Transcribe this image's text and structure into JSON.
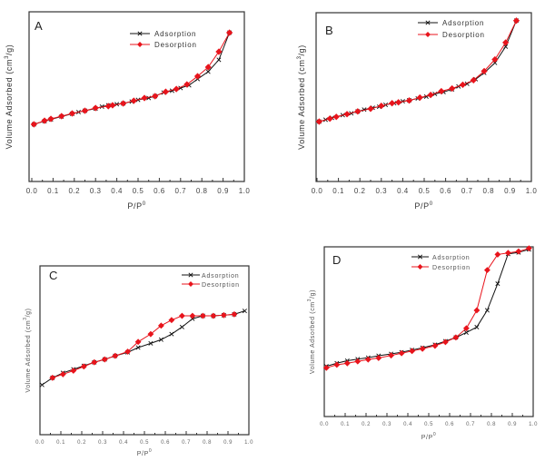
{
  "figure": {
    "description": "Four-panel N2 adsorption-desorption isotherm figure"
  },
  "chart_data": [
    {
      "type": "line",
      "panel": "A",
      "title": "",
      "xlabel": "P/P0",
      "xlabel_base": "P/P",
      "xlabel_sup": "0",
      "ylabel": "Volume Adsorbed (cm3/g)",
      "ylabel_pre": "Volume Adsorbed (cm",
      "ylabel_sup": "3",
      "ylabel_post": "/g)",
      "xlim": [
        0.0,
        1.0
      ],
      "ylim": [
        0,
        100
      ],
      "y_units_note": "relative (no y tick labels shown)",
      "xticks": [
        "0.0",
        "0.1",
        "0.2",
        "0.3",
        "0.4",
        "0.5",
        "0.6",
        "0.7",
        "0.8",
        "0.9",
        "1.0"
      ],
      "grid": false,
      "legend_position": "top-right",
      "series": [
        {
          "name": "Adsorption",
          "color": "#111111",
          "marker": "x",
          "x": [
            0.01,
            0.06,
            0.09,
            0.14,
            0.19,
            0.22,
            0.25,
            0.3,
            0.33,
            0.36,
            0.4,
            0.43,
            0.47,
            0.5,
            0.55,
            0.58,
            0.62,
            0.66,
            0.7,
            0.74,
            0.78,
            0.83,
            0.88,
            0.93
          ],
          "y": [
            33.7,
            35.6,
            36.6,
            38.3,
            39.9,
            40.9,
            41.7,
            43.0,
            44.1,
            44.9,
            45.5,
            46.0,
            47.1,
            48.1,
            49.2,
            50.3,
            52.4,
            53.5,
            55.1,
            56.7,
            60.4,
            64.7,
            71.7,
            87.7
          ]
        },
        {
          "name": "Desorption",
          "color": "#e8141c",
          "marker": "diamond",
          "x": [
            0.01,
            0.06,
            0.09,
            0.14,
            0.19,
            0.25,
            0.3,
            0.36,
            0.38,
            0.43,
            0.48,
            0.53,
            0.58,
            0.63,
            0.68,
            0.73,
            0.78,
            0.83,
            0.88,
            0.93
          ],
          "y": [
            33.7,
            35.8,
            36.9,
            38.5,
            40.1,
            41.7,
            43.3,
            44.4,
            44.9,
            46.0,
            47.6,
            49.2,
            50.3,
            52.9,
            54.5,
            57.2,
            62.0,
            67.4,
            76.5,
            87.7
          ]
        }
      ]
    },
    {
      "type": "line",
      "panel": "B",
      "title": "",
      "xlabel": "P/P0",
      "xlabel_base": "P/P",
      "xlabel_sup": "0",
      "ylabel": "Volume Adsorbed (cm3/g)",
      "ylabel_pre": "Volume Adsorbed (cm",
      "ylabel_sup": "3",
      "ylabel_post": "/g)",
      "xlim": [
        0.0,
        1.0
      ],
      "ylim": [
        0,
        100
      ],
      "y_units_note": "relative (no y tick labels shown)",
      "xticks": [
        "0.0",
        "0.1",
        "0.2",
        "0.3",
        "0.4",
        "0.5",
        "0.6",
        "0.7",
        "0.8",
        "0.9",
        "1.0"
      ],
      "grid": false,
      "legend_position": "top-right",
      "series": [
        {
          "name": "Adsorption",
          "color": "#111111",
          "marker": "x",
          "x": [
            0.01,
            0.04,
            0.07,
            0.12,
            0.16,
            0.19,
            0.22,
            0.26,
            0.29,
            0.32,
            0.36,
            0.4,
            0.43,
            0.47,
            0.51,
            0.55,
            0.59,
            0.63,
            0.66,
            0.7,
            0.74,
            0.78,
            0.83,
            0.88,
            0.93
          ],
          "y": [
            35.5,
            36.6,
            37.7,
            39.3,
            40.4,
            41.5,
            42.6,
            43.7,
            44.3,
            45.4,
            46.4,
            47.5,
            48.1,
            49.2,
            50.3,
            51.9,
            53.0,
            54.6,
            56.3,
            57.9,
            60.6,
            64.4,
            70.3,
            79.9,
            95.3
          ]
        },
        {
          "name": "Desorption",
          "color": "#e8141c",
          "marker": "diamond",
          "x": [
            0.01,
            0.06,
            0.09,
            0.14,
            0.19,
            0.25,
            0.3,
            0.35,
            0.38,
            0.43,
            0.48,
            0.53,
            0.58,
            0.63,
            0.68,
            0.73,
            0.78,
            0.83,
            0.88,
            0.93
          ],
          "y": [
            35.5,
            37.2,
            38.3,
            39.9,
            41.5,
            43.1,
            44.8,
            46.4,
            46.9,
            48.0,
            49.7,
            51.3,
            53.5,
            55.1,
            57.3,
            60.0,
            65.4,
            72.3,
            82.3,
            95.3
          ]
        }
      ]
    },
    {
      "type": "line",
      "panel": "C",
      "title": "",
      "xlabel": "P/P0",
      "xlabel_base": "P/P",
      "xlabel_sup": "0",
      "ylabel": "Volume Adsorbed (cm3/g)",
      "ylabel_pre": "Volume Adsorbed (cm",
      "ylabel_sup": "3",
      "ylabel_post": "/g)",
      "xlim": [
        0.0,
        1.0
      ],
      "ylim": [
        0,
        100
      ],
      "y_units_note": "relative (no y tick labels shown)",
      "xticks": [
        "0.0",
        "0.1",
        "0.2",
        "0.3",
        "0.4",
        "0.5",
        "0.6",
        "0.7",
        "0.8",
        "0.9",
        "1.0"
      ],
      "grid": false,
      "legend_position": "top-right",
      "series": [
        {
          "name": "Adsorption",
          "color": "#111111",
          "marker": "x",
          "x": [
            0.01,
            0.06,
            0.11,
            0.16,
            0.21,
            0.26,
            0.31,
            0.36,
            0.42,
            0.47,
            0.53,
            0.58,
            0.63,
            0.68,
            0.73,
            0.78,
            0.83,
            0.88,
            0.93,
            0.98
          ],
          "y": [
            29.5,
            33.7,
            36.6,
            38.7,
            40.8,
            42.9,
            44.6,
            46.7,
            48.8,
            51.6,
            54.1,
            56.3,
            59.6,
            63.8,
            68.7,
            70.4,
            70.4,
            70.8,
            71.3,
            73.3
          ]
        },
        {
          "name": "Desorption",
          "color": "#e8141c",
          "marker": "diamond",
          "x": [
            0.06,
            0.11,
            0.16,
            0.21,
            0.26,
            0.31,
            0.36,
            0.42,
            0.47,
            0.53,
            0.58,
            0.63,
            0.68,
            0.73,
            0.78,
            0.83,
            0.88,
            0.93
          ],
          "y": [
            33.7,
            35.8,
            37.9,
            40.4,
            42.9,
            44.6,
            46.7,
            49.2,
            55.0,
            59.6,
            64.6,
            67.9,
            70.4,
            70.4,
            70.4,
            70.4,
            70.8,
            71.3
          ]
        }
      ]
    },
    {
      "type": "line",
      "panel": "D",
      "title": "",
      "xlabel": "P/P0",
      "xlabel_base": "P/P",
      "xlabel_sup": "0",
      "ylabel": "Volume Adsorbed (cm3/g)",
      "ylabel_pre": "Volume Adsorbed (cm",
      "ylabel_sup": "3",
      "ylabel_post": "/g)",
      "xlim": [
        0.0,
        1.0
      ],
      "ylim": [
        0,
        100
      ],
      "y_units_note": "relative (no y tick labels shown)",
      "xticks": [
        "0.0",
        "0.1",
        "0.2",
        "0.3",
        "0.4",
        "0.5",
        "0.6",
        "0.7",
        "0.8",
        "0.9",
        "1.0"
      ],
      "grid": false,
      "legend_position": "top-center",
      "series": [
        {
          "name": "Adsorption",
          "color": "#111111",
          "marker": "x",
          "x": [
            0.01,
            0.06,
            0.11,
            0.16,
            0.21,
            0.26,
            0.32,
            0.37,
            0.42,
            0.47,
            0.53,
            0.58,
            0.63,
            0.68,
            0.73,
            0.78,
            0.83,
            0.88,
            0.93,
            0.98
          ],
          "y": [
            29.6,
            31.4,
            32.9,
            33.8,
            34.7,
            35.8,
            36.9,
            37.9,
            39.2,
            40.5,
            42.3,
            44.4,
            46.6,
            49.5,
            52.7,
            62.6,
            78.3,
            95.8,
            96.7,
            98.5
          ]
        },
        {
          "name": "Desorption",
          "color": "#e8141c",
          "marker": "diamond",
          "x": [
            0.01,
            0.06,
            0.11,
            0.16,
            0.21,
            0.26,
            0.32,
            0.37,
            0.42,
            0.47,
            0.53,
            0.58,
            0.63,
            0.68,
            0.73,
            0.78,
            0.83,
            0.88,
            0.93,
            0.98
          ],
          "y": [
            28.7,
            30.5,
            31.4,
            32.5,
            33.6,
            34.5,
            36.0,
            37.3,
            38.6,
            39.9,
            41.7,
            43.9,
            46.6,
            52.0,
            62.6,
            86.3,
            95.5,
            96.4,
            97.3,
            99.1
          ]
        }
      ]
    }
  ]
}
